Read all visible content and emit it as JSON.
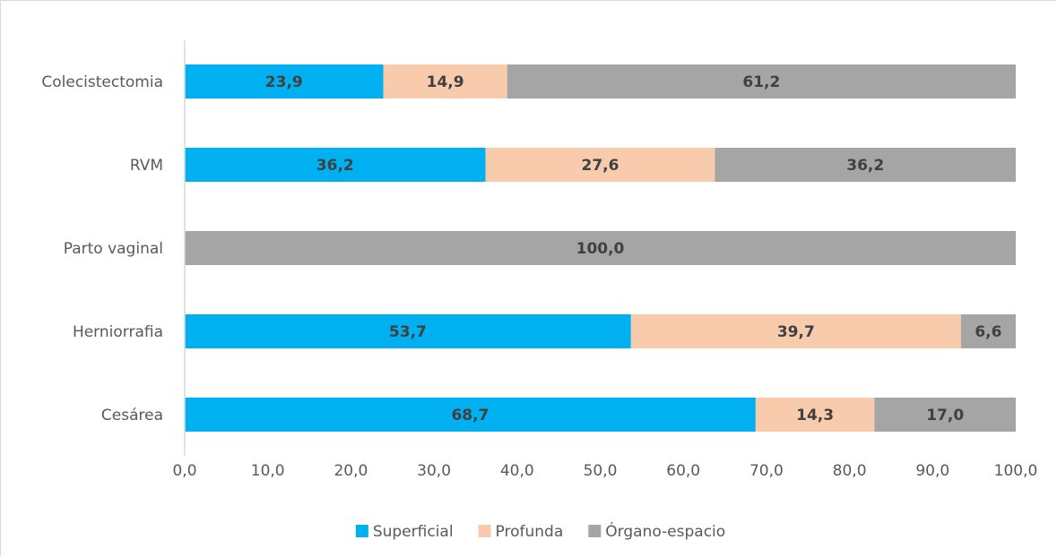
{
  "chart_data": {
    "type": "bar",
    "orientation": "horizontal",
    "stacked": true,
    "categories": [
      "Colecistectomia",
      "RVM",
      "Parto vaginal",
      "Herniorrafia",
      "Cesárea"
    ],
    "series": [
      {
        "name": "Superficial",
        "color": "#00b0f0",
        "values": [
          23.9,
          36.2,
          0,
          53.7,
          68.7
        ]
      },
      {
        "name": "Profunda",
        "color": "#f8cbad",
        "values": [
          14.9,
          27.6,
          0,
          39.7,
          14.3
        ]
      },
      {
        "name": "Órgano-espacio",
        "color": "#a5a5a5",
        "values": [
          61.2,
          36.2,
          100.0,
          6.6,
          17.0
        ]
      }
    ],
    "data_labels": [
      [
        "23,9",
        "14,9",
        "61,2"
      ],
      [
        "36,2",
        "27,6",
        "36,2"
      ],
      [
        "",
        "",
        "100,0"
      ],
      [
        "53,7",
        "39,7",
        "6,6"
      ],
      [
        "68,7",
        "14,3",
        "17,0"
      ]
    ],
    "xticks": [
      0,
      10,
      20,
      30,
      40,
      50,
      60,
      70,
      80,
      90,
      100
    ],
    "xtick_labels": [
      "0,0",
      "10,0",
      "20,0",
      "30,0",
      "40,0",
      "50,0",
      "60,0",
      "70,0",
      "80,0",
      "90,0",
      "100,0"
    ],
    "xlim": [
      0,
      100
    ],
    "title": "",
    "xlabel": "",
    "ylabel": "",
    "grid": false,
    "legend_position": "bottom"
  }
}
